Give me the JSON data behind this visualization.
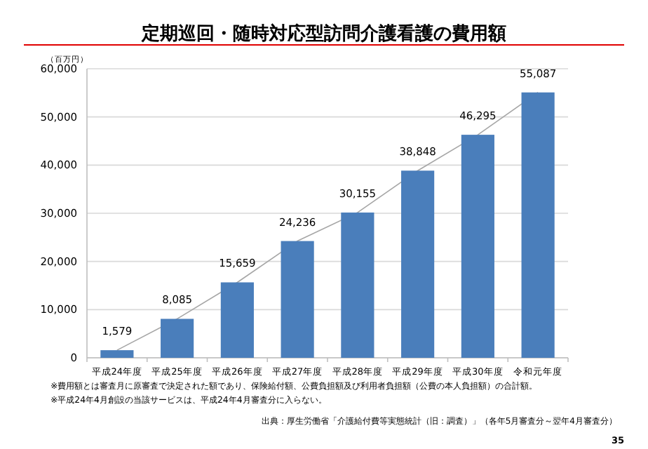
{
  "chart_data": {
    "type": "bar",
    "title": "定期巡回・随時対応型訪問介護看護の費用額",
    "ylabel": "（百万円）",
    "categories": [
      "平成24年度",
      "平成25年度",
      "平成26年度",
      "平成27年度",
      "平成28年度",
      "平成29年度",
      "平成30年度",
      "令和元年度"
    ],
    "series": [
      {
        "type": "line",
        "color": "#a6a6a6",
        "values": [
          1579,
          8085,
          15659,
          24236,
          30155,
          38848,
          46295,
          55087
        ],
        "value_labels": [
          null,
          null,
          null,
          null,
          null,
          null,
          null,
          null
        ]
      },
      {
        "color": "#4a7ebb",
        "values": [
          1579,
          8085,
          15659,
          24236,
          30155,
          38848,
          46295,
          55087
        ],
        "value_labels": [
          "1,579",
          "8,085",
          "15,659",
          "24,236",
          "30,155",
          "38,848",
          "46,295",
          "55,087"
        ]
      }
    ],
    "ylim": [
      0,
      60000
    ],
    "yticks": [
      {
        "value": 0,
        "label": "0"
      },
      {
        "value": 10000,
        "label": "10,000"
      },
      {
        "value": 20000,
        "label": "20,000"
      },
      {
        "value": 30000,
        "label": "30,000"
      },
      {
        "value": 40000,
        "label": "40,000"
      },
      {
        "value": 50000,
        "label": "50,000"
      },
      {
        "value": 60000,
        "label": "60,000"
      }
    ],
    "grid": "y",
    "annotations": [
      "※費用額とは審査月に原審査で決定された額であり、保険給付額、公費負担額及び利用者負担額（公費の本人負担額）の合計額。",
      "※平成24年4月創設の当該サービスは、平成24年4月審査分に入らない。",
      "出典：厚生労働省「介護給付費等実態統計（旧：調査）」（各年5月審査分～翌年4月審査分）",
      "35"
    ]
  }
}
